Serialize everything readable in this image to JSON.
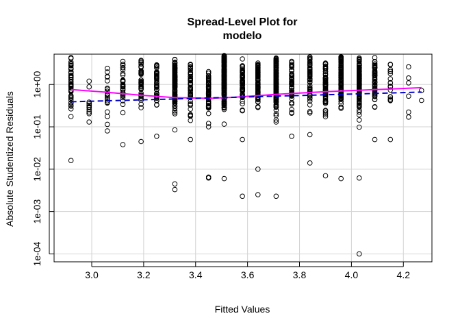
{
  "chart_data": {
    "type": "scatter",
    "title_line1": "Spread-Level Plot for",
    "title_line2": "modelo",
    "xlabel": "Fitted Values",
    "ylabel": "Absolute Studentized Residuals",
    "x_scale": "linear",
    "y_scale": "log10",
    "xlim": [
      2.9,
      4.27
    ],
    "ylim": [
      0.0001,
      5
    ],
    "x_ticks": [
      3.0,
      3.2,
      3.4,
      3.6,
      3.8,
      4.0,
      4.2
    ],
    "x_tick_labels": [
      "3.0",
      "3.2",
      "3.4",
      "3.6",
      "3.8",
      "4.0",
      "4.2"
    ],
    "y_ticks": [
      0.0001,
      0.001,
      0.01,
      0.1,
      1
    ],
    "y_tick_labels": [
      "1e-04",
      "1e-03",
      "1e-02",
      "1e-01",
      "1e+00"
    ],
    "grid": true,
    "point_marker": "open-circle",
    "point_color": "#000000",
    "columns": [
      {
        "x": 2.92,
        "min": 0.016,
        "max": 4.3,
        "n": 55
      },
      {
        "x": 2.99,
        "min": 0.13,
        "max": 1.2,
        "n": 12
      },
      {
        "x": 3.06,
        "min": 0.08,
        "max": 2.4,
        "n": 22
      },
      {
        "x": 3.12,
        "min": 0.038,
        "max": 3.5,
        "n": 35
      },
      {
        "x": 3.19,
        "min": 0.045,
        "max": 3.7,
        "n": 40
      },
      {
        "x": 3.25,
        "min": 0.06,
        "max": 2.9,
        "n": 45
      },
      {
        "x": 3.32,
        "min": 0.0033,
        "max": 3.9,
        "n": 170
      },
      {
        "x": 3.38,
        "min": 0.05,
        "max": 3.0,
        "n": 50
      },
      {
        "x": 3.45,
        "min": 0.0062,
        "max": 2.0,
        "n": 60
      },
      {
        "x": 3.51,
        "min": 0.006,
        "max": 4.8,
        "n": 190
      },
      {
        "x": 3.58,
        "min": 0.05,
        "max": 4.0,
        "n": 60
      },
      {
        "x": 3.64,
        "min": 0.01,
        "max": 3.2,
        "n": 90
      },
      {
        "x": 3.71,
        "min": 0.0023,
        "max": 4.2,
        "n": 160
      },
      {
        "x": 3.77,
        "min": 0.06,
        "max": 3.5,
        "n": 50
      },
      {
        "x": 3.84,
        "min": 0.014,
        "max": 4.5,
        "n": 60
      },
      {
        "x": 3.9,
        "min": 0.007,
        "max": 3.2,
        "n": 70
      },
      {
        "x": 3.96,
        "min": 0.006,
        "max": 4.5,
        "n": 110
      },
      {
        "x": 4.03,
        "min": 0.0062,
        "max": 4.2,
        "n": 170
      },
      {
        "x": 4.09,
        "min": 0.05,
        "max": 4.3,
        "n": 60
      },
      {
        "x": 4.15,
        "min": 0.05,
        "max": 3.0,
        "n": 20
      },
      {
        "x": 4.22,
        "min": 0.17,
        "max": 2.6,
        "n": 6
      },
      {
        "x": 4.27,
        "min": 0.42,
        "max": 0.72,
        "n": 2
      }
    ],
    "extra_points": [
      {
        "x": 3.58,
        "y": 0.0023
      },
      {
        "x": 3.64,
        "y": 0.0025
      },
      {
        "x": 3.32,
        "y": 0.0045
      },
      {
        "x": 4.03,
        "y": 0.0001
      },
      {
        "x": 3.45,
        "y": 0.0065
      }
    ],
    "series": [
      {
        "style": "solid",
        "color": "#ff00ff",
        "x": [
          2.92,
          3.05,
          3.2,
          3.32,
          3.45,
          3.55,
          3.7,
          3.85,
          4.0,
          4.15,
          4.27
        ],
        "y": [
          0.76,
          0.66,
          0.55,
          0.49,
          0.47,
          0.5,
          0.58,
          0.65,
          0.72,
          0.78,
          0.84
        ]
      },
      {
        "style": "dashed",
        "color": "#0000cc",
        "x": [
          2.92,
          4.27
        ],
        "y": [
          0.39,
          0.66
        ]
      }
    ]
  }
}
